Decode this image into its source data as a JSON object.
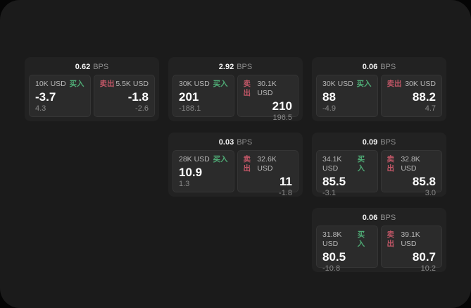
{
  "page": {
    "backdrop_color": "#050505",
    "surface_color": "#1b1b1b"
  },
  "colors": {
    "card_bg": "#222222",
    "panel_bg": "#2b2b2b",
    "buy_green": "#4fab75",
    "sell_red": "#c05666",
    "label_gray": "#b8b8b8",
    "muted_gray": "#8a8a8a",
    "value_white": "#ffffff"
  },
  "labels": {
    "bps_suffix": "BPS",
    "buy": "买入",
    "sell": "卖出"
  },
  "cards": [
    {
      "row": 1,
      "col": 1,
      "bps": "0.62",
      "buy": {
        "amount": "10K USD",
        "price": "-3.7",
        "delta": "4.3"
      },
      "sell": {
        "amount": "5.5K USD",
        "price": "-1.8",
        "delta": "-2.6"
      }
    },
    {
      "row": 1,
      "col": 2,
      "bps": "2.92",
      "buy": {
        "amount": "30K USD",
        "price": "201",
        "delta": "-188.1"
      },
      "sell": {
        "amount": "30.1K USD",
        "price": "210",
        "delta": "196.5"
      }
    },
    {
      "row": 1,
      "col": 3,
      "bps": "0.06",
      "buy": {
        "amount": "30K USD",
        "price": "88",
        "delta": "-4.9"
      },
      "sell": {
        "amount": "30K USD",
        "price": "88.2",
        "delta": "4.7"
      }
    },
    {
      "row": 2,
      "col": 2,
      "bps": "0.03",
      "buy": {
        "amount": "28K USD",
        "price": "10.9",
        "delta": "1.3"
      },
      "sell": {
        "amount": "32.6K USD",
        "price": "11",
        "delta": "-1.8"
      }
    },
    {
      "row": 2,
      "col": 3,
      "bps": "0.09",
      "buy": {
        "amount": "34.1K USD",
        "price": "85.5",
        "delta": "-3.1"
      },
      "sell": {
        "amount": "32.8K USD",
        "price": "85.8",
        "delta": "3.0"
      }
    },
    {
      "row": 3,
      "col": 3,
      "bps": "0.06",
      "buy": {
        "amount": "31.8K USD",
        "price": "80.5",
        "delta": "-10.8"
      },
      "sell": {
        "amount": "39.1K USD",
        "price": "80.7",
        "delta": "10.2"
      }
    }
  ]
}
